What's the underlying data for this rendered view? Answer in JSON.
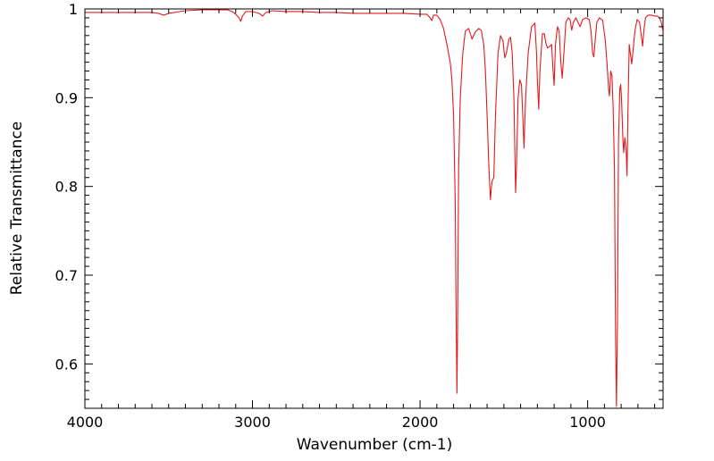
{
  "chart_data": {
    "type": "line",
    "title": "",
    "xlabel": "Wavenumber (cm-1)",
    "ylabel": "Relative Transmittance",
    "xlim": [
      4000,
      550
    ],
    "x_reversed": true,
    "ylim": [
      0.55,
      1.0
    ],
    "x_ticks": [
      4000,
      3000,
      2000,
      1000
    ],
    "x_tick_labels": [
      "4000",
      "3000",
      "2000",
      "1000"
    ],
    "y_ticks": [
      0.6,
      0.7,
      0.8,
      0.9,
      1.0
    ],
    "y_tick_labels": [
      "0.6",
      "0.7",
      "0.8",
      "0.9",
      "1"
    ],
    "grid": false,
    "legend": "none",
    "series": [
      {
        "color": "#e31a1c",
        "points": [
          [
            4000,
            0.996
          ],
          [
            3800,
            0.996
          ],
          [
            3600,
            0.996
          ],
          [
            3560,
            0.995
          ],
          [
            3530,
            0.993
          ],
          [
            3500,
            0.995
          ],
          [
            3400,
            0.998
          ],
          [
            3300,
            0.999
          ],
          [
            3200,
            0.999
          ],
          [
            3150,
            0.999
          ],
          [
            3120,
            0.997
          ],
          [
            3100,
            0.994
          ],
          [
            3080,
            0.99
          ],
          [
            3070,
            0.986
          ],
          [
            3060,
            0.992
          ],
          [
            3040,
            0.997
          ],
          [
            3000,
            0.997
          ],
          [
            2960,
            0.995
          ],
          [
            2940,
            0.992
          ],
          [
            2920,
            0.996
          ],
          [
            2880,
            0.998
          ],
          [
            2800,
            0.997
          ],
          [
            2700,
            0.997
          ],
          [
            2600,
            0.996
          ],
          [
            2500,
            0.996
          ],
          [
            2400,
            0.995
          ],
          [
            2300,
            0.995
          ],
          [
            2200,
            0.995
          ],
          [
            2100,
            0.995
          ],
          [
            2000,
            0.994
          ],
          [
            1960,
            0.994
          ],
          [
            1940,
            0.99
          ],
          [
            1930,
            0.987
          ],
          [
            1920,
            0.993
          ],
          [
            1900,
            0.993
          ],
          [
            1880,
            0.988
          ],
          [
            1860,
            0.978
          ],
          [
            1840,
            0.96
          ],
          [
            1820,
            0.94
          ],
          [
            1810,
            0.92
          ],
          [
            1800,
            0.88
          ],
          [
            1790,
            0.78
          ],
          [
            1785,
            0.66
          ],
          [
            1780,
            0.567
          ],
          [
            1776,
            0.64
          ],
          [
            1770,
            0.82
          ],
          [
            1760,
            0.9
          ],
          [
            1745,
            0.95
          ],
          [
            1730,
            0.975
          ],
          [
            1710,
            0.978
          ],
          [
            1690,
            0.966
          ],
          [
            1670,
            0.974
          ],
          [
            1650,
            0.978
          ],
          [
            1635,
            0.976
          ],
          [
            1620,
            0.96
          ],
          [
            1610,
            0.93
          ],
          [
            1600,
            0.88
          ],
          [
            1590,
            0.825
          ],
          [
            1580,
            0.785
          ],
          [
            1575,
            0.798
          ],
          [
            1570,
            0.806
          ],
          [
            1560,
            0.81
          ],
          [
            1550,
            0.88
          ],
          [
            1535,
            0.95
          ],
          [
            1520,
            0.97
          ],
          [
            1505,
            0.964
          ],
          [
            1495,
            0.945
          ],
          [
            1485,
            0.95
          ],
          [
            1470,
            0.966
          ],
          [
            1460,
            0.968
          ],
          [
            1450,
            0.95
          ],
          [
            1440,
            0.9
          ],
          [
            1430,
            0.793
          ],
          [
            1425,
            0.82
          ],
          [
            1415,
            0.9
          ],
          [
            1405,
            0.92
          ],
          [
            1395,
            0.915
          ],
          [
            1385,
            0.87
          ],
          [
            1380,
            0.843
          ],
          [
            1370,
            0.9
          ],
          [
            1355,
            0.95
          ],
          [
            1335,
            0.98
          ],
          [
            1315,
            0.984
          ],
          [
            1305,
            0.95
          ],
          [
            1300,
            0.92
          ],
          [
            1292,
            0.887
          ],
          [
            1285,
            0.93
          ],
          [
            1270,
            0.972
          ],
          [
            1258,
            0.972
          ],
          [
            1250,
            0.962
          ],
          [
            1240,
            0.956
          ],
          [
            1225,
            0.958
          ],
          [
            1215,
            0.96
          ],
          [
            1208,
            0.935
          ],
          [
            1200,
            0.914
          ],
          [
            1192,
            0.96
          ],
          [
            1180,
            0.98
          ],
          [
            1170,
            0.975
          ],
          [
            1160,
            0.94
          ],
          [
            1152,
            0.922
          ],
          [
            1140,
            0.955
          ],
          [
            1130,
            0.985
          ],
          [
            1115,
            0.99
          ],
          [
            1105,
            0.988
          ],
          [
            1095,
            0.976
          ],
          [
            1085,
            0.985
          ],
          [
            1070,
            0.99
          ],
          [
            1055,
            0.984
          ],
          [
            1045,
            0.98
          ],
          [
            1030,
            0.988
          ],
          [
            1010,
            0.99
          ],
          [
            990,
            0.988
          ],
          [
            980,
            0.975
          ],
          [
            970,
            0.95
          ],
          [
            963,
            0.946
          ],
          [
            955,
            0.965
          ],
          [
            945,
            0.985
          ],
          [
            930,
            0.99
          ],
          [
            910,
            0.987
          ],
          [
            895,
            0.965
          ],
          [
            885,
            0.94
          ],
          [
            875,
            0.91
          ],
          [
            870,
            0.902
          ],
          [
            862,
            0.93
          ],
          [
            855,
            0.925
          ],
          [
            848,
            0.89
          ],
          [
            840,
            0.82
          ],
          [
            833,
            0.62
          ],
          [
            828,
            0.552
          ],
          [
            822,
            0.65
          ],
          [
            816,
            0.85
          ],
          [
            808,
            0.91
          ],
          [
            803,
            0.915
          ],
          [
            798,
            0.9
          ],
          [
            790,
            0.855
          ],
          [
            785,
            0.838
          ],
          [
            778,
            0.855
          ],
          [
            770,
            0.84
          ],
          [
            765,
            0.812
          ],
          [
            760,
            0.88
          ],
          [
            752,
            0.96
          ],
          [
            745,
            0.95
          ],
          [
            737,
            0.938
          ],
          [
            728,
            0.955
          ],
          [
            718,
            0.975
          ],
          [
            705,
            0.988
          ],
          [
            690,
            0.985
          ],
          [
            680,
            0.97
          ],
          [
            672,
            0.958
          ],
          [
            665,
            0.975
          ],
          [
            655,
            0.99
          ],
          [
            640,
            0.993
          ],
          [
            620,
            0.993
          ],
          [
            600,
            0.992
          ],
          [
            585,
            0.992
          ],
          [
            572,
            0.99
          ],
          [
            562,
            0.986
          ],
          [
            550,
            0.974
          ]
        ]
      }
    ]
  }
}
